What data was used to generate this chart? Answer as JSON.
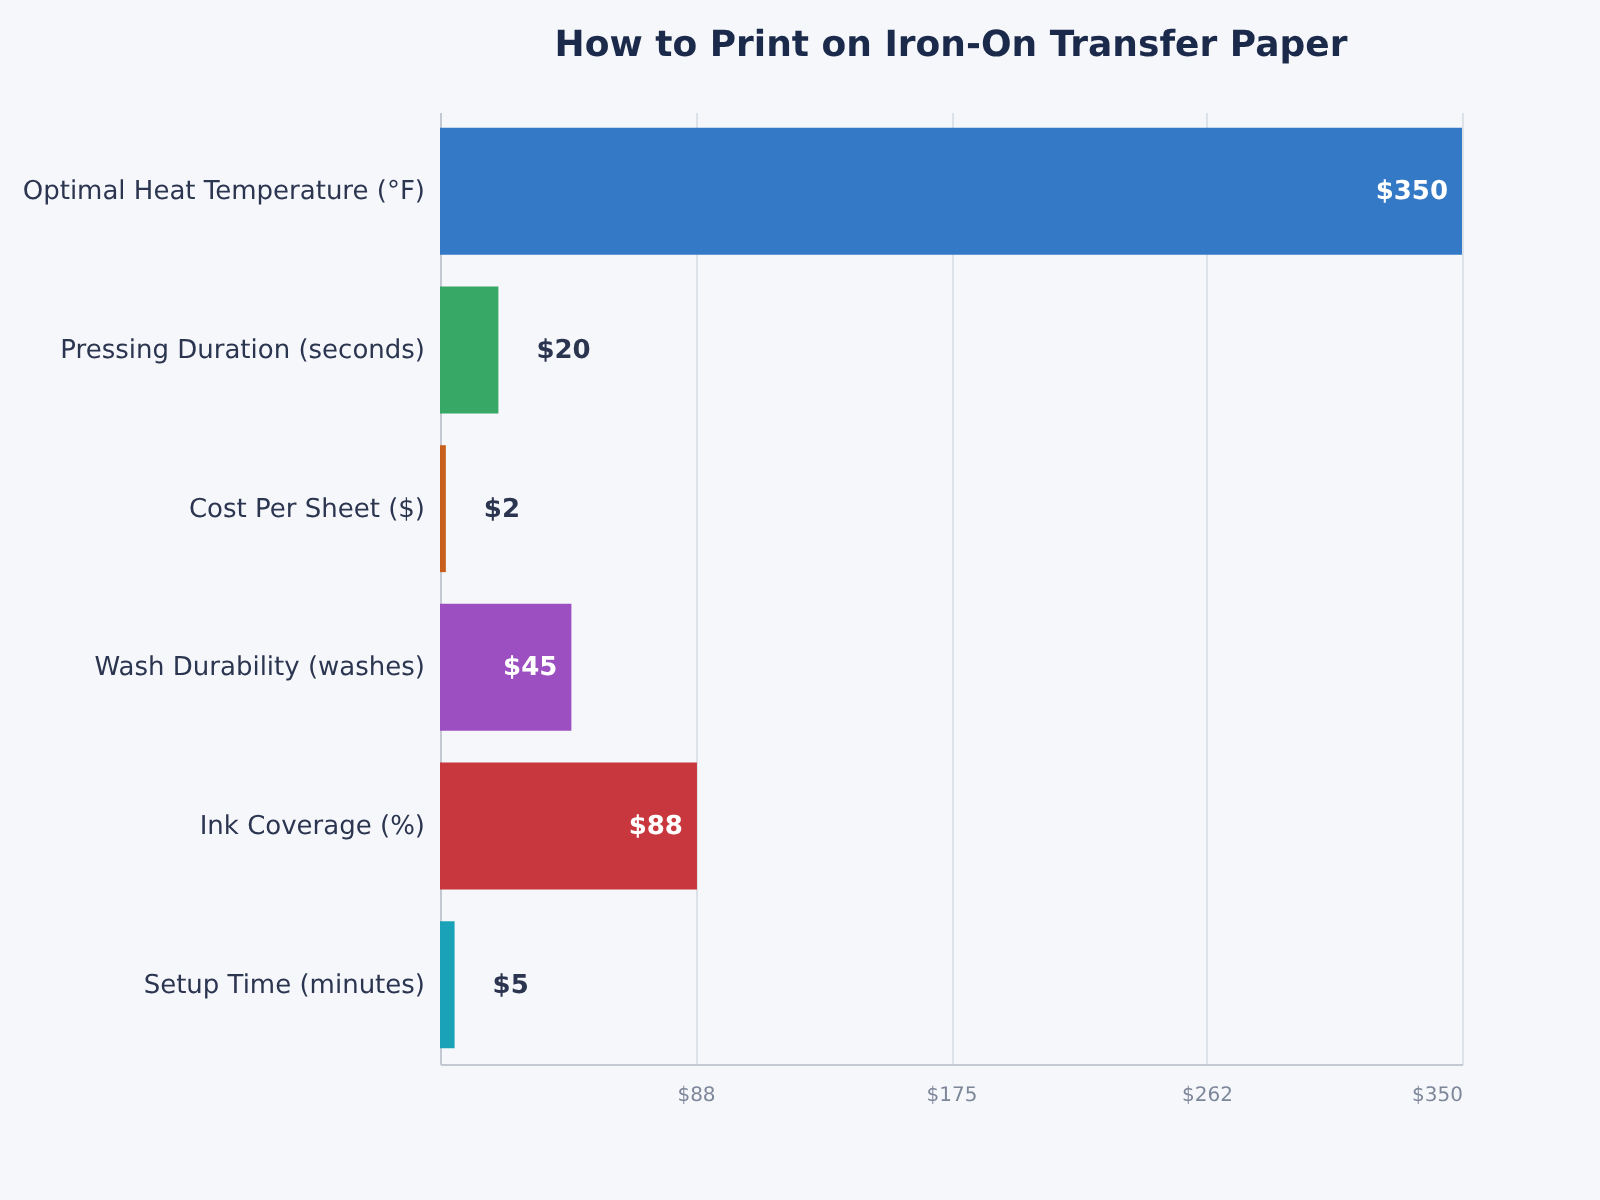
{
  "chart_data": {
    "type": "bar",
    "orientation": "horizontal",
    "title": "How to Print on Iron-On Transfer Paper",
    "categories": [
      "Optimal Heat Temperature (°F)",
      "Pressing Duration (seconds)",
      "Cost Per Sheet ($)",
      "Wash Durability (washes)",
      "Ink Coverage (%)",
      "Setup Time (minutes)"
    ],
    "values": [
      350,
      20,
      2,
      45,
      88,
      5
    ],
    "colors": [
      "#3479c5",
      "#37a866",
      "#c95f1c",
      "#9b4fc1",
      "#c8373e",
      "#1aa2b8"
    ],
    "value_labels": [
      "$350",
      "$20",
      "$2",
      "$45",
      "$88",
      "$5"
    ],
    "xlim": [
      0,
      350
    ],
    "xticks": [
      {
        "value": 87.5,
        "label": "$88"
      },
      {
        "value": 175,
        "label": "$175"
      },
      {
        "value": 262.5,
        "label": "$262"
      },
      {
        "value": 350,
        "label": "$350"
      }
    ],
    "grid": "x"
  }
}
